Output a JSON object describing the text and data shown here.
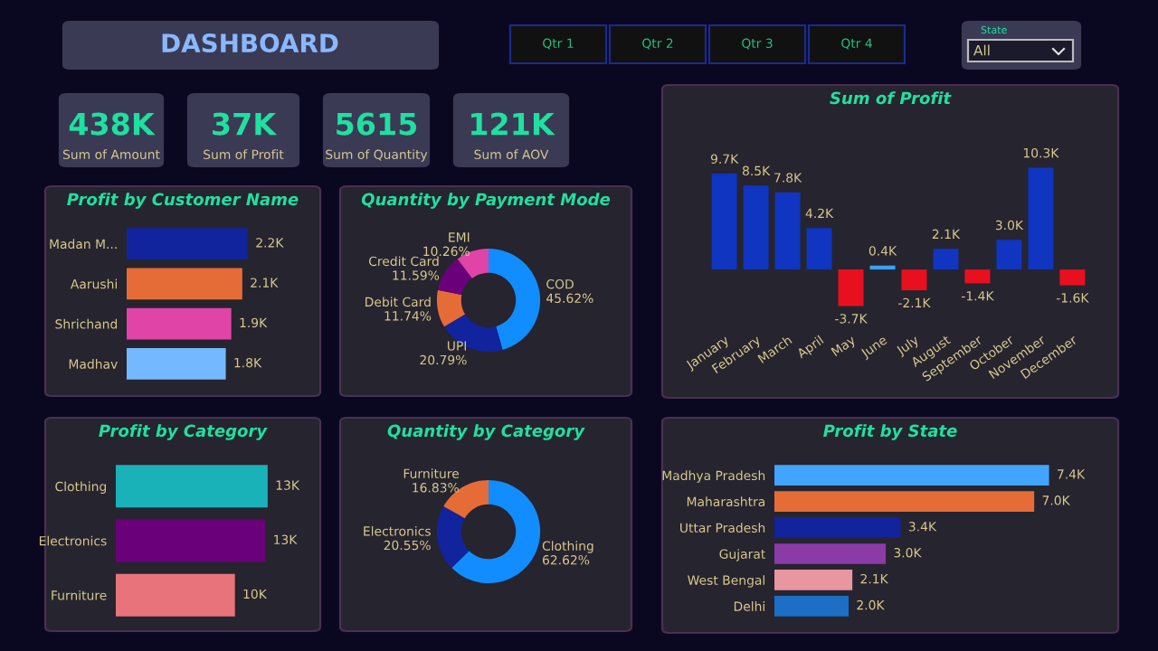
{
  "chart_data": [
    {
      "type": "other",
      "title": "DASHBOARD",
      "annotations": [
        "438K",
        "Sum of Amount",
        "37K",
        "Sum of Profit",
        "5615",
        "Sum of Quantity",
        "121K",
        "Sum of AOV",
        "Qtr 1",
        "Qtr 2",
        "Qtr 3",
        "Qtr 4",
        "State",
        "All"
      ]
    },
    {
      "type": "bar",
      "orientation": "horizontal",
      "title": "Profit by Customer Name",
      "categories": [
        "Madan M...",
        "Aarushi",
        "Shrichand",
        "Madhav"
      ],
      "values": [
        2200,
        2100,
        1900,
        1800
      ],
      "value_labels": [
        "2.2K",
        "2.1K",
        "1.9K",
        "1.8K"
      ],
      "colors": [
        "#12239e",
        "#e66c37",
        "#e044a7",
        "#74b9ff"
      ],
      "tick_labels": "y"
    },
    {
      "type": "donut",
      "title": "Quantity by Payment Mode",
      "categories": [
        "COD",
        "UPI",
        "Debit Card",
        "Credit Card",
        "EMI"
      ],
      "values": [
        45.62,
        20.79,
        11.74,
        11.59,
        10.26
      ],
      "value_labels": [
        "45.62%",
        "20.79%",
        "11.74%",
        "11.59%",
        "10.26%"
      ],
      "colors": [
        "#118dff",
        "#12239e",
        "#e66c37",
        "#6b007b",
        "#e044a7"
      ]
    },
    {
      "type": "bar",
      "title": "Sum of Profit",
      "categories": [
        "January",
        "February",
        "March",
        "April",
        "May",
        "June",
        "July",
        "August",
        "September",
        "October",
        "November",
        "December"
      ],
      "values": [
        9700,
        8500,
        7800,
        4200,
        -3700,
        400,
        -2100,
        2100,
        -1400,
        3000,
        10300,
        -1600
      ],
      "value_labels": [
        "9.7K",
        "8.5K",
        "7.8K",
        "4.2K",
        "-3.7K",
        "0.4K",
        "-2.1K",
        "2.1K",
        "-1.4K",
        "3.0K",
        "10.3K",
        "-1.6K"
      ],
      "colors": [
        "#1035c0",
        "#1035c0",
        "#1035c0",
        "#1035c0",
        "#e8101f",
        "#3aa0ff",
        "#e8101f",
        "#1035c0",
        "#e8101f",
        "#1035c0",
        "#1035c0",
        "#e8101f"
      ],
      "tick_labels": "x"
    },
    {
      "type": "bar",
      "orientation": "horizontal",
      "title": "Profit by Category",
      "categories": [
        "Clothing",
        "Electronics",
        "Furniture"
      ],
      "values": [
        13000,
        12800,
        10200
      ],
      "value_labels": [
        "13K",
        "13K",
        "10K"
      ],
      "colors": [
        "#1ab2b9",
        "#6b007b",
        "#e8737a"
      ],
      "tick_labels": "y"
    },
    {
      "type": "donut",
      "title": "Quantity by Category",
      "categories": [
        "Clothing",
        "Electronics",
        "Furniture"
      ],
      "values": [
        62.62,
        20.55,
        16.83
      ],
      "value_labels": [
        "62.62%",
        "20.55%",
        "16.83%"
      ],
      "colors": [
        "#118dff",
        "#12239e",
        "#e66c37"
      ]
    },
    {
      "type": "bar",
      "orientation": "horizontal",
      "title": "Profit by State",
      "categories": [
        "Madhya Pradesh",
        "Maharashtra",
        "Uttar Pradesh",
        "Gujarat",
        "West Bengal",
        "Delhi"
      ],
      "values": [
        7400,
        7000,
        3400,
        3000,
        2100,
        2000
      ],
      "value_labels": [
        "7.4K",
        "7.0K",
        "3.4K",
        "3.0K",
        "2.1K",
        "2.0K"
      ],
      "colors": [
        "#41a4ff",
        "#e66c37",
        "#12239e",
        "#8b3ba8",
        "#e8969f",
        "#1c6fc4"
      ],
      "tick_labels": "y"
    }
  ]
}
